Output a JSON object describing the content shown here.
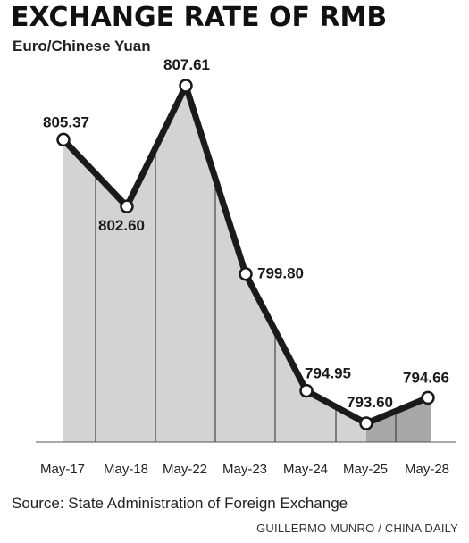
{
  "title": "EXCHANGE RATE OF RMB",
  "subtitle": "Euro/Chinese Yuan",
  "source": "Source: State Administration of Foreign Exchange",
  "credit": "GUILLERMO MUNRO / CHINA DAILY",
  "chart_data": {
    "type": "line",
    "title": "EXCHANGE RATE OF RMB",
    "subtitle": "Euro/Chinese Yuan",
    "categories": [
      "May-17",
      "May-18",
      "May-22",
      "May-23",
      "May-24",
      "May-25",
      "May-28"
    ],
    "series": [
      {
        "values": [
          805.37,
          802.6,
          807.61,
          799.8,
          794.95,
          793.6,
          794.66
        ]
      }
    ],
    "data_labels": [
      "805.37",
      "802.60",
      "807.61",
      "799.80",
      "794.95",
      "793.60",
      "794.66"
    ],
    "ylim": [
      791.2,
      808.6
    ],
    "grid": false,
    "colors": {
      "line": "#1a1a1a",
      "area": "#d3d3d3",
      "area_last": "#a8a8a8",
      "marker_fill": "#ffffff"
    }
  }
}
